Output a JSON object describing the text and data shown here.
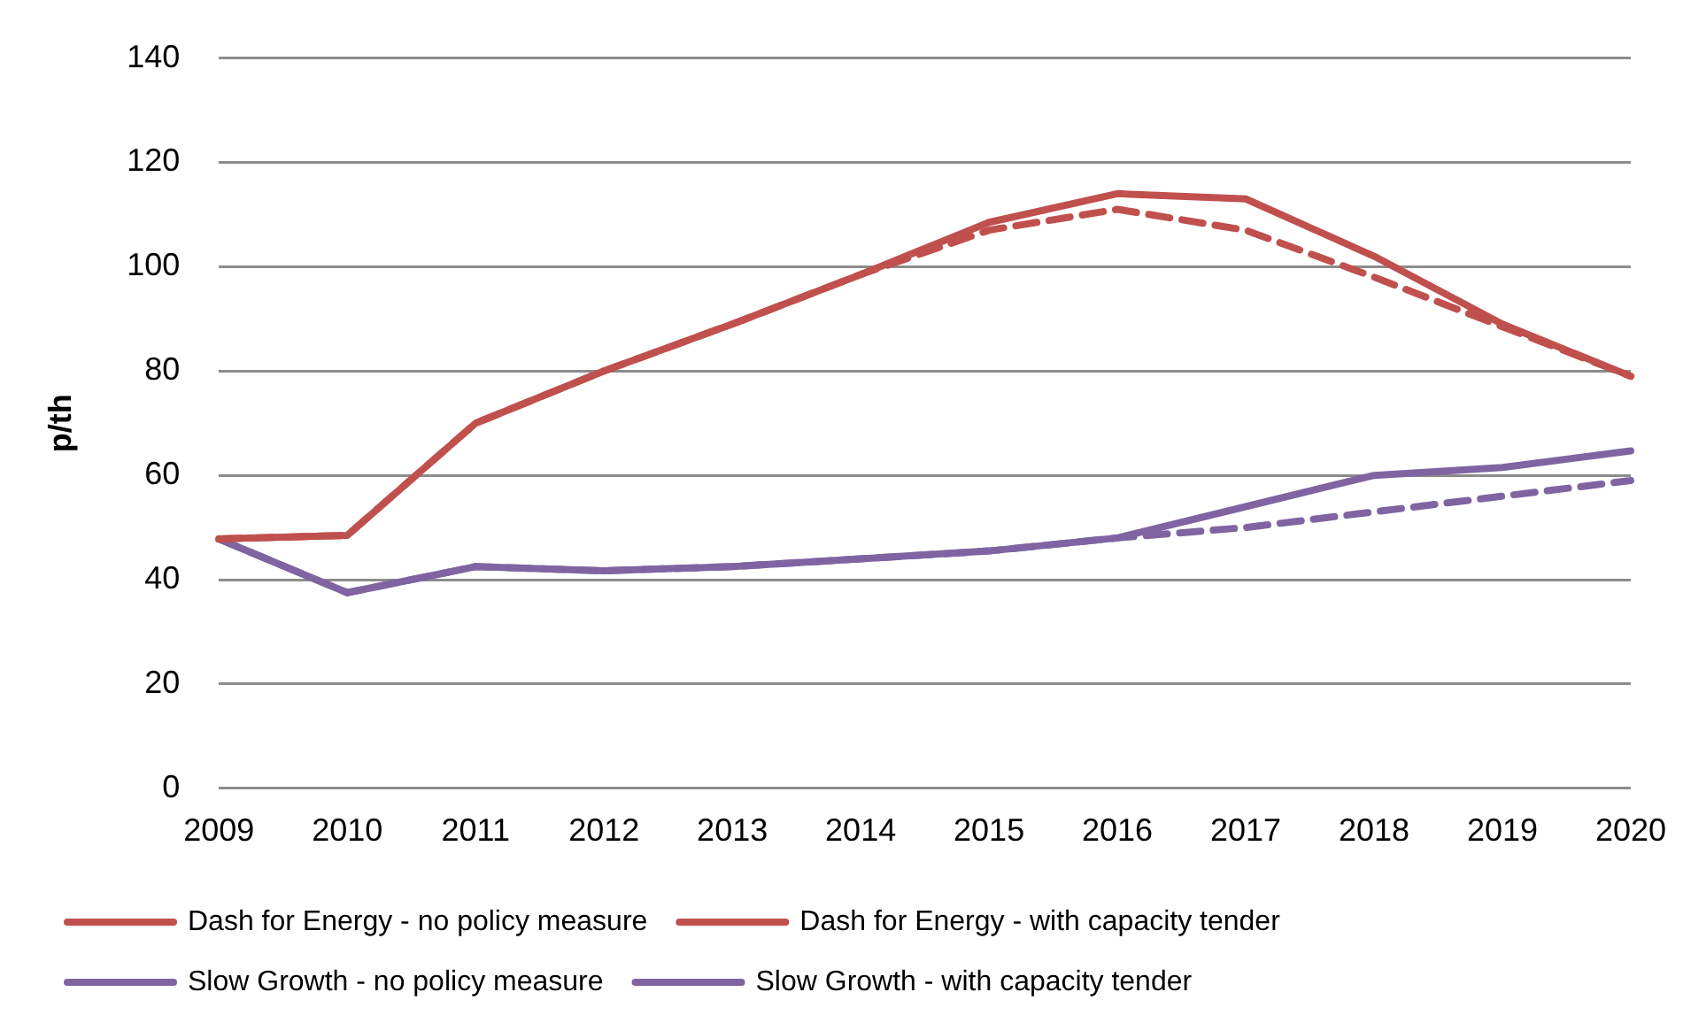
{
  "chart_data": {
    "type": "line",
    "ylabel": "p/th",
    "categories": [
      "2009",
      "2010",
      "2011",
      "2012",
      "2013",
      "2014",
      "2015",
      "2016",
      "2017",
      "2018",
      "2019",
      "2020"
    ],
    "ylim": [
      0,
      140
    ],
    "yticks": [
      0,
      20,
      40,
      60,
      80,
      100,
      120,
      140
    ],
    "grid": "y",
    "legend": "bottom",
    "marker": "none",
    "series": [
      {
        "name": "Dash for Energy - no policy measure",
        "color": "#c0504d",
        "line_style": "solid",
        "values": [
          47.8,
          48.5,
          70,
          80,
          89,
          98.5,
          108.5,
          114,
          113,
          102,
          89,
          79
        ]
      },
      {
        "name": "Dash for Energy - with capacity tender",
        "color": "#c0504d",
        "line_style": "dashed",
        "values": [
          47.8,
          48.5,
          70,
          80,
          89,
          98.5,
          107,
          111,
          107,
          98,
          88.5,
          79
        ]
      },
      {
        "name": "Slow Growth - no policy measure",
        "color": "#8064a2",
        "line_style": "solid",
        "values": [
          47.8,
          37.5,
          42.5,
          41.7,
          42.5,
          44,
          45.5,
          48,
          54,
          60,
          61.5,
          64.7
        ]
      },
      {
        "name": "Slow Growth - with capacity tender",
        "color": "#8064a2",
        "line_style": "dashed",
        "values": [
          47.8,
          37.5,
          42.5,
          41.7,
          42.5,
          44,
          45.5,
          48,
          50,
          53,
          56,
          59
        ]
      }
    ]
  }
}
